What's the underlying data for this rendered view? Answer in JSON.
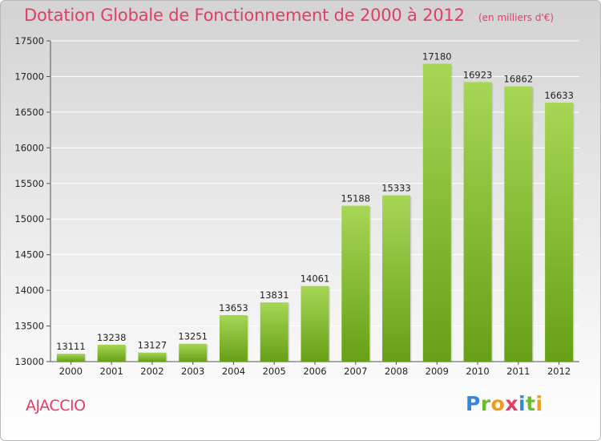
{
  "header": {
    "title": "Dotation Globale de Fonctionnement de 2000 à 2012",
    "subtitle": "(en milliers d'€)"
  },
  "footer": {
    "place": "AJACCIO",
    "logo_letters": [
      {
        "char": "P",
        "color": "#3a86d6"
      },
      {
        "char": "r",
        "color": "#6bbf2e"
      },
      {
        "char": "o",
        "color": "#f29a1d"
      },
      {
        "char": "x",
        "color": "#e23d64"
      },
      {
        "char": "i",
        "color": "#3a86d6"
      },
      {
        "char": "t",
        "color": "#6bbf2e"
      },
      {
        "char": "i",
        "color": "#f29a1d"
      }
    ]
  },
  "chart_data": {
    "type": "bar",
    "title": "Dotation Globale de Fonctionnement de 2000 à 2012",
    "subtitle": "(en milliers d'€)",
    "categories": [
      "2000",
      "2001",
      "2002",
      "2003",
      "2004",
      "2005",
      "2006",
      "2007",
      "2008",
      "2009",
      "2010",
      "2011",
      "2012"
    ],
    "values": [
      13111,
      13238,
      13127,
      13251,
      13653,
      13831,
      14061,
      15188,
      15333,
      17180,
      16923,
      16862,
      16633
    ],
    "ylim": [
      13000,
      17500
    ],
    "yticks": [
      13000,
      13500,
      14000,
      14500,
      15000,
      15500,
      16000,
      16500,
      17000,
      17500
    ],
    "grid": true,
    "data_labels": true,
    "colors": {
      "bar_light": "#a6d655",
      "bar_dark": "#66a016",
      "grid": "#ffffff",
      "accent": "#e23d64"
    }
  }
}
